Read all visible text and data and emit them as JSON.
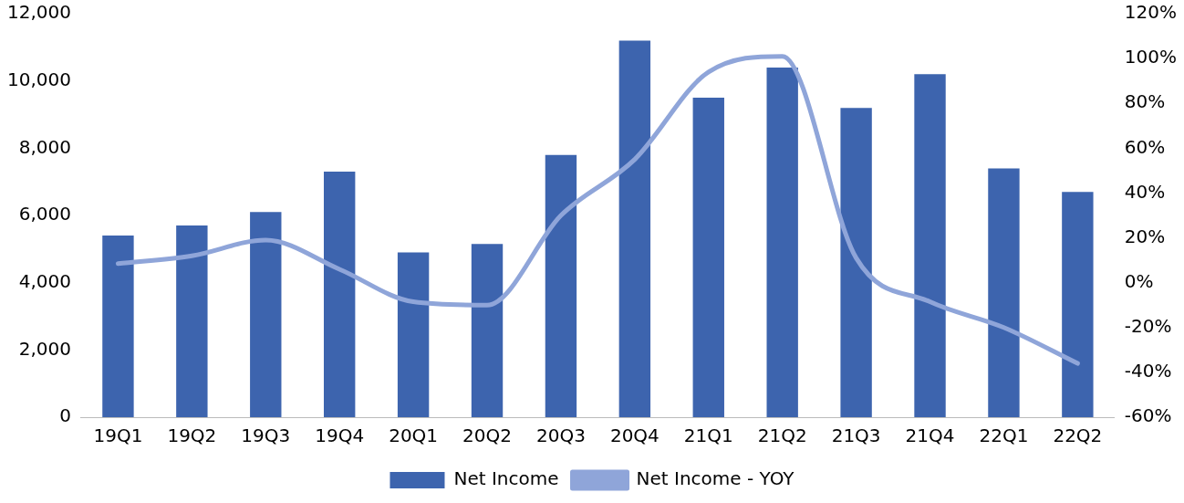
{
  "chart_data": {
    "type": "bar",
    "categories": [
      "19Q1",
      "19Q2",
      "19Q3",
      "19Q4",
      "20Q1",
      "20Q2",
      "20Q3",
      "20Q4",
      "21Q1",
      "21Q2",
      "21Q3",
      "21Q4",
      "22Q1",
      "22Q2"
    ],
    "series": [
      {
        "name": "Net Income",
        "color": "#3d64ae",
        "values": [
          5400,
          5700,
          6100,
          7300,
          4900,
          5150,
          7800,
          11200,
          9500,
          10400,
          9200,
          10200,
          7400,
          6700
        ]
      },
      {
        "name": "Net Income - YOY",
        "type": "line",
        "axis": "y2",
        "color": "#8fa5d9",
        "values": [
          8.5,
          12,
          19,
          6,
          -8.5,
          -10,
          30,
          55,
          94,
          101,
          11,
          -8.5,
          -20,
          -36
        ]
      }
    ],
    "ylim": [
      0,
      12000
    ],
    "yticks": [
      {
        "value": 0,
        "label": "0"
      },
      {
        "value": 2000,
        "label": "2,000"
      },
      {
        "value": 4000,
        "label": "4,000"
      },
      {
        "value": 6000,
        "label": "6,000"
      },
      {
        "value": 8000,
        "label": "8,000"
      },
      {
        "value": 10000,
        "label": "10,000"
      },
      {
        "value": 12000,
        "label": "12,000"
      }
    ],
    "y2lim": [
      -60,
      120
    ],
    "y2ticks": [
      {
        "value": -60,
        "label": "-60%"
      },
      {
        "value": -40,
        "label": "-40%"
      },
      {
        "value": -20,
        "label": "-20%"
      },
      {
        "value": 0,
        "label": "0%"
      },
      {
        "value": 20,
        "label": "20%"
      },
      {
        "value": 40,
        "label": "40%"
      },
      {
        "value": 60,
        "label": "60%"
      },
      {
        "value": 80,
        "label": "80%"
      },
      {
        "value": 100,
        "label": "100%"
      },
      {
        "value": 120,
        "label": "120%"
      }
    ],
    "grid": false,
    "legend": "bottom",
    "marker": "none"
  }
}
